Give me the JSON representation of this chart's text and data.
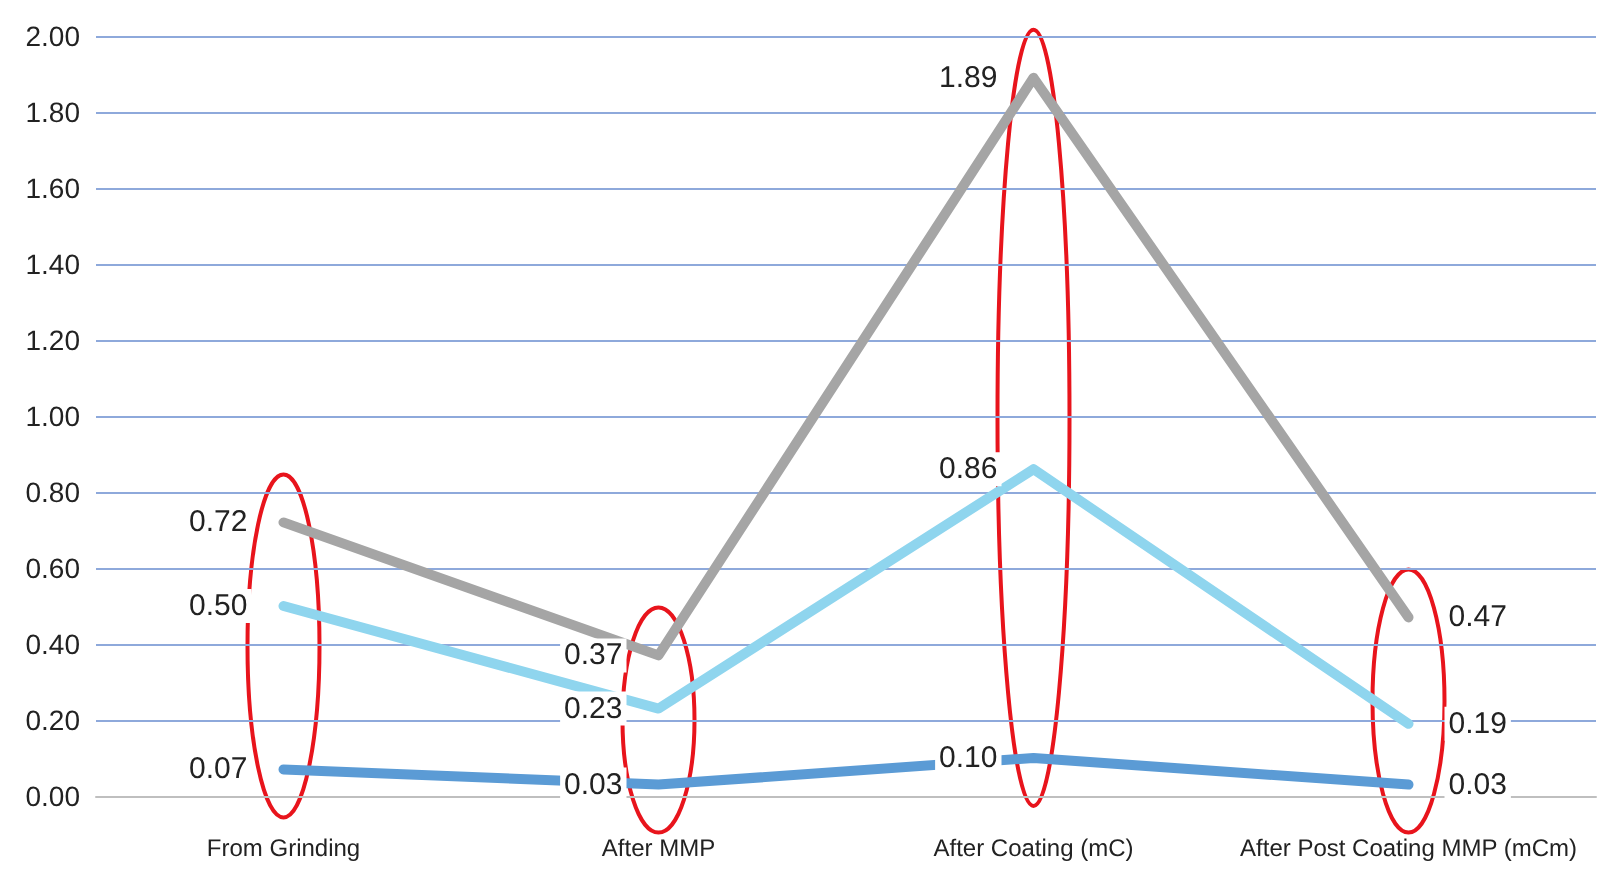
{
  "chart_data": {
    "type": "line",
    "categories": [
      "From Grinding",
      "After MMP",
      "After Coating (mC)",
      "After Post Coating MMP (mCm)"
    ],
    "series": [
      {
        "color": "#a5a5a5",
        "values": [
          0.72,
          0.37,
          1.89,
          0.47
        ],
        "value_labels": [
          "0.72",
          "0.37",
          "1.89",
          "0.47"
        ]
      },
      {
        "color": "#8fd5ee",
        "values": [
          0.5,
          0.23,
          0.86,
          0.19
        ],
        "value_labels": [
          "0.50",
          "0.23",
          "0.86",
          "0.19"
        ]
      },
      {
        "color": "#5b9bd5",
        "values": [
          0.07,
          0.03,
          0.1,
          0.03
        ],
        "value_labels": [
          "0.07",
          "0.03",
          "0.10",
          "0.03"
        ]
      }
    ],
    "ylim": [
      0,
      2
    ],
    "yticks": [
      {
        "value": 0,
        "label": "0.00"
      },
      {
        "value": 0.2,
        "label": "0.20"
      },
      {
        "value": 0.4,
        "label": "0.40"
      },
      {
        "value": 0.6,
        "label": "0.60"
      },
      {
        "value": 0.8,
        "label": "0.80"
      },
      {
        "value": 1,
        "label": "1.00"
      },
      {
        "value": 1.2,
        "label": "1.20"
      },
      {
        "value": 1.4,
        "label": "1.40"
      },
      {
        "value": 1.6,
        "label": "1.60"
      },
      {
        "value": 1.8,
        "label": "1.80"
      },
      {
        "value": 2,
        "label": "2.00"
      }
    ],
    "grid": "y",
    "marker": "none",
    "line_style": "solid"
  }
}
